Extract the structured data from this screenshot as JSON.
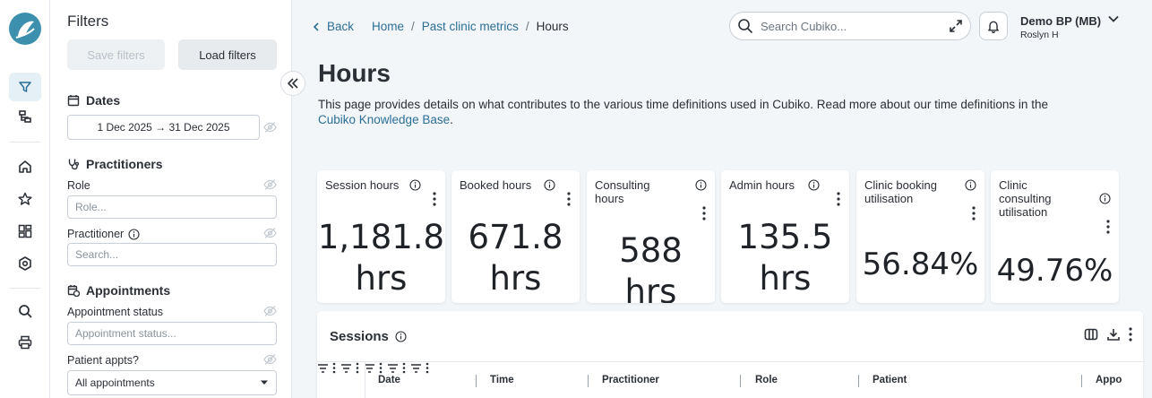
{
  "filters": {
    "title": "Filters",
    "save_label": "Save filters",
    "load_label": "Load filters",
    "dates_heading": "Dates",
    "date_range": "1 Dec 2025 → 31 Dec 2025",
    "practitioners_heading": "Practitioners",
    "role_label": "Role",
    "role_placeholder": "Role...",
    "practitioner_label": "Practitioner",
    "practitioner_placeholder": "Search...",
    "appointments_heading": "Appointments",
    "appt_status_label": "Appointment status",
    "appt_status_placeholder": "Appointment status...",
    "patient_appts_label": "Patient appts?",
    "patient_appts_value": "All appointments"
  },
  "breadcrumb": {
    "back": "Back",
    "home": "Home",
    "parent": "Past clinic metrics",
    "current": "Hours",
    "sep": "/"
  },
  "search": {
    "placeholder": "Search Cubiko..."
  },
  "account": {
    "name": "Demo BP (MB)",
    "user": "Roslyn H"
  },
  "page": {
    "title": "Hours",
    "description": "This page provides details on what contributes to the various time definitions used in Cubiko. Read more about our time definitions in the",
    "kb_link": "Cubiko Knowledge Base",
    "period": "."
  },
  "cards": [
    {
      "label": "Session hours",
      "value_line1": "1,181.8",
      "value_line2": "hrs"
    },
    {
      "label": "Booked hours",
      "value_line1": "671.8",
      "value_line2": "hrs"
    },
    {
      "label": "Consulting hours",
      "value_line1": "588",
      "value_line2": "hrs"
    },
    {
      "label": "Admin hours",
      "value_line1": "135.5",
      "value_line2": "hrs"
    },
    {
      "label": "Clinic booking utilisation",
      "value_line1": "56.84%"
    },
    {
      "label": "Clinic consulting utilisation",
      "value_line1": "49.76%"
    }
  ],
  "sessions": {
    "title": "Sessions",
    "columns": [
      "Date",
      "Time",
      "Practitioner",
      "Role",
      "Patient",
      "Appo"
    ]
  },
  "colors": {
    "accent": "#2b6f96",
    "brand": "#3d8fae",
    "active_bg": "#e4f0f6"
  },
  "icons": {
    "rail": [
      "filter-icon",
      "hierarchy-icon",
      "home-icon",
      "star-icon",
      "dashboard-icon",
      "settings-icon",
      "search-icon",
      "print-icon"
    ]
  }
}
